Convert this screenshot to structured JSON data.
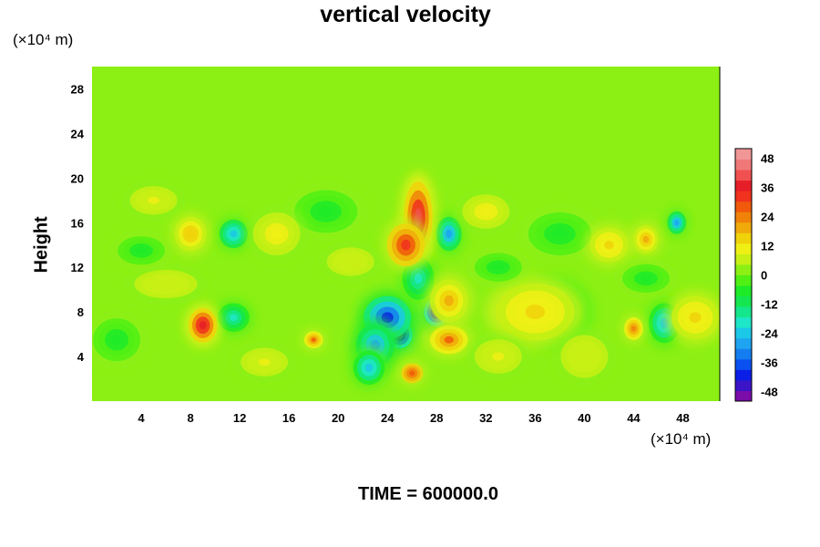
{
  "chart_data": {
    "type": "heatmap",
    "title": "vertical velocity",
    "ylabel": "Height",
    "x_unit_label": "(×10⁴ m)",
    "y_unit_label": "(×10⁴ m)",
    "x_ticks": [
      4,
      8,
      12,
      16,
      20,
      24,
      28,
      32,
      36,
      40,
      44,
      48
    ],
    "y_ticks": [
      4,
      8,
      12,
      16,
      20,
      24,
      28
    ],
    "xlim": [
      0,
      51
    ],
    "ylim": [
      0,
      30
    ],
    "colorbar": {
      "ticks": [
        48,
        36,
        24,
        12,
        0,
        -12,
        -24,
        -36,
        -48
      ],
      "range": [
        -52,
        52
      ],
      "colors": [
        "#7a0ca8",
        "#3c14c8",
        "#0a1ee6",
        "#0a50f0",
        "#147ef0",
        "#1ea4f0",
        "#1cc8e8",
        "#1ee6c8",
        "#14e68c",
        "#14e650",
        "#1eeb28",
        "#50f014",
        "#8cf014",
        "#c8f014",
        "#f0f014",
        "#f0d20a",
        "#f0aa0a",
        "#f0820a",
        "#f05a0a",
        "#f0321e",
        "#e61e28",
        "#f05050",
        "#f07878",
        "#f09696"
      ]
    },
    "background_value": 2,
    "features": [
      {
        "x": 25.0,
        "y": 6.0,
        "value": -52,
        "sx": 0.8,
        "sy": 1.0
      },
      {
        "x": 24.0,
        "y": 7.5,
        "value": -40,
        "sx": 1.5,
        "sy": 1.5
      },
      {
        "x": 28.0,
        "y": 8.0,
        "value": -52,
        "sx": 0.8,
        "sy": 1.0
      },
      {
        "x": 23.0,
        "y": 5.0,
        "value": -30,
        "sx": 1.2,
        "sy": 1.5
      },
      {
        "x": 22.5,
        "y": 3.0,
        "value": -24,
        "sx": 1.0,
        "sy": 1.2
      },
      {
        "x": 26.5,
        "y": 11.0,
        "value": -20,
        "sx": 1.0,
        "sy": 1.5
      },
      {
        "x": 11.5,
        "y": 7.5,
        "value": -20,
        "sx": 1.0,
        "sy": 1.0
      },
      {
        "x": 11.5,
        "y": 15.0,
        "value": -26,
        "sx": 0.9,
        "sy": 1.0
      },
      {
        "x": 29.0,
        "y": 15.0,
        "value": -28,
        "sx": 0.8,
        "sy": 1.2
      },
      {
        "x": 46.5,
        "y": 7.0,
        "value": -24,
        "sx": 1.0,
        "sy": 1.4
      },
      {
        "x": 47.5,
        "y": 16.0,
        "value": -28,
        "sx": 0.6,
        "sy": 0.8
      },
      {
        "x": 37.5,
        "y": 8.0,
        "value": -10,
        "sx": 2.0,
        "sy": 2.0
      },
      {
        "x": 2.0,
        "y": 5.5,
        "value": -8,
        "sx": 1.5,
        "sy": 1.5
      },
      {
        "x": 38.0,
        "y": 15.0,
        "value": -8,
        "sx": 2.0,
        "sy": 1.5
      },
      {
        "x": 19.0,
        "y": 17.0,
        "value": -6,
        "sx": 2.0,
        "sy": 1.5
      },
      {
        "x": 26.5,
        "y": 16.5,
        "value": 40,
        "sx": 0.9,
        "sy": 2.5
      },
      {
        "x": 25.5,
        "y": 14.0,
        "value": 34,
        "sx": 1.2,
        "sy": 1.5
      },
      {
        "x": 9.0,
        "y": 6.8,
        "value": 38,
        "sx": 0.9,
        "sy": 1.2
      },
      {
        "x": 18.0,
        "y": 5.5,
        "value": 26,
        "sx": 0.6,
        "sy": 0.6
      },
      {
        "x": 29.0,
        "y": 5.5,
        "value": 26,
        "sx": 1.2,
        "sy": 1.0
      },
      {
        "x": 26.0,
        "y": 2.5,
        "value": 30,
        "sx": 0.7,
        "sy": 0.7
      },
      {
        "x": 29.0,
        "y": 9.0,
        "value": 18,
        "sx": 1.2,
        "sy": 1.5
      },
      {
        "x": 44.0,
        "y": 6.5,
        "value": 24,
        "sx": 0.6,
        "sy": 0.8
      },
      {
        "x": 8.0,
        "y": 15.0,
        "value": 16,
        "sx": 1.0,
        "sy": 1.2
      },
      {
        "x": 15.0,
        "y": 15.0,
        "value": 12,
        "sx": 1.5,
        "sy": 1.5
      },
      {
        "x": 36.0,
        "y": 8.0,
        "value": 14,
        "sx": 2.5,
        "sy": 2.0
      },
      {
        "x": 42.0,
        "y": 14.0,
        "value": 14,
        "sx": 1.2,
        "sy": 1.2
      },
      {
        "x": 45.0,
        "y": 14.5,
        "value": 18,
        "sx": 0.8,
        "sy": 1.0
      },
      {
        "x": 49.0,
        "y": 7.5,
        "value": 14,
        "sx": 1.5,
        "sy": 1.5
      },
      {
        "x": 5.0,
        "y": 18.0,
        "value": 10,
        "sx": 1.5,
        "sy": 1.0
      },
      {
        "x": 32.0,
        "y": 17.0,
        "value": 12,
        "sx": 1.5,
        "sy": 1.2
      },
      {
        "x": 14.0,
        "y": 3.5,
        "value": 10,
        "sx": 1.5,
        "sy": 1.0
      },
      {
        "x": 33.0,
        "y": 4.0,
        "value": 10,
        "sx": 1.5,
        "sy": 1.2
      },
      {
        "x": 6.0,
        "y": 10.5,
        "value": 8,
        "sx": 2.0,
        "sy": 1.0
      },
      {
        "x": 21.0,
        "y": 12.5,
        "value": 8,
        "sx": 1.5,
        "sy": 1.0
      },
      {
        "x": 40.0,
        "y": 4.0,
        "value": 8,
        "sx": 1.5,
        "sy": 1.5
      },
      {
        "x": 45.0,
        "y": 11.0,
        "value": -8,
        "sx": 1.5,
        "sy": 1.0
      },
      {
        "x": 4.0,
        "y": 13.5,
        "value": -8,
        "sx": 1.5,
        "sy": 1.0
      },
      {
        "x": 33.0,
        "y": 12.0,
        "value": -6,
        "sx": 1.5,
        "sy": 1.0
      }
    ]
  },
  "footer": {
    "time_label": "TIME = 600000.0"
  }
}
